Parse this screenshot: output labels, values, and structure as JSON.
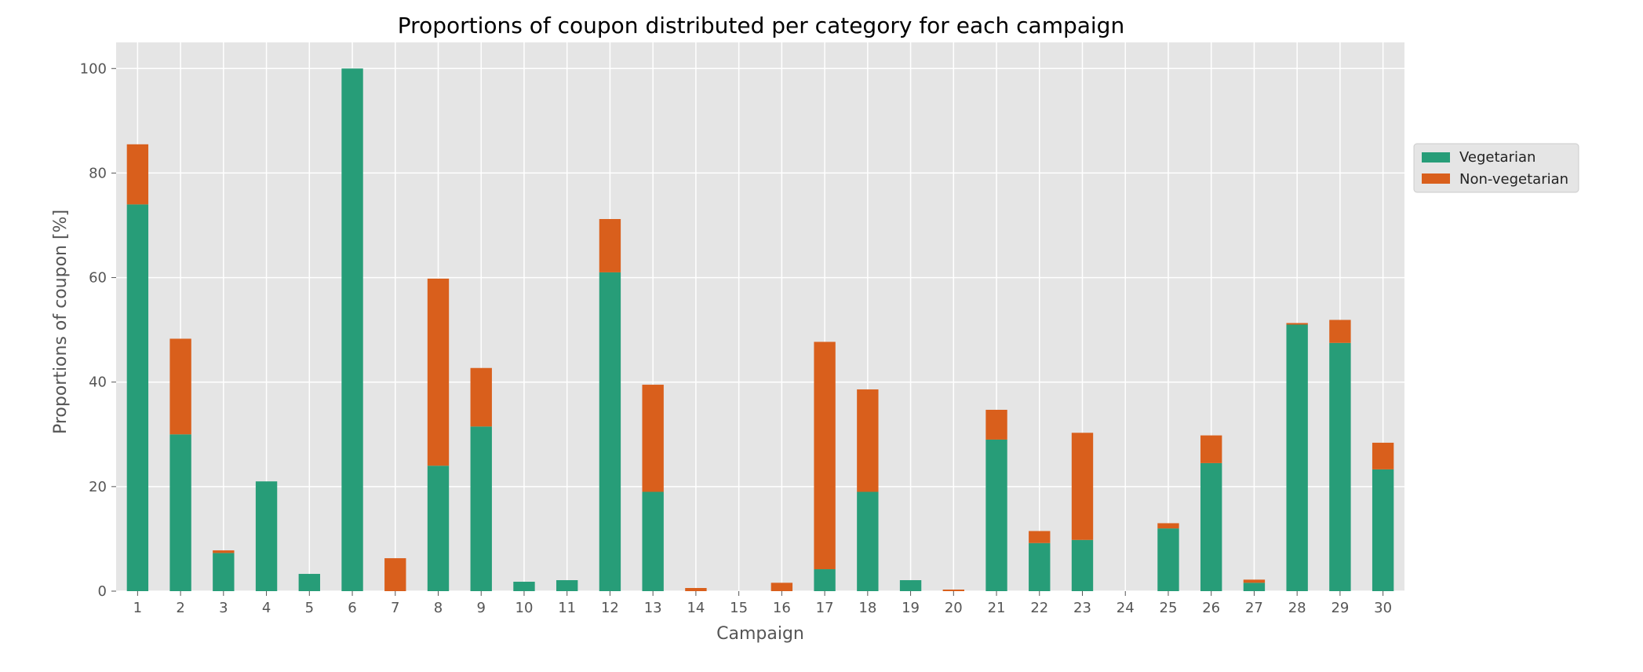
{
  "chart_data": {
    "type": "bar",
    "stacked": true,
    "title": "Proportions of coupon distributed per category for each campaign",
    "xlabel": "Campaign",
    "ylabel": "Proportions of coupon [%]",
    "ylim": [
      0,
      105
    ],
    "yticks": [
      0,
      20,
      40,
      60,
      80,
      100
    ],
    "grid": true,
    "legend_position": "right",
    "categories": [
      "1",
      "2",
      "3",
      "4",
      "5",
      "6",
      "7",
      "8",
      "9",
      "10",
      "11",
      "12",
      "13",
      "14",
      "15",
      "16",
      "17",
      "18",
      "19",
      "20",
      "21",
      "22",
      "23",
      "24",
      "25",
      "26",
      "27",
      "28",
      "29",
      "30"
    ],
    "series": [
      {
        "name": "Vegetarian",
        "color": "#279d78",
        "values": [
          74,
          30,
          7.3,
          21,
          3.3,
          100,
          0,
          24,
          31.5,
          1.8,
          2.1,
          61,
          19,
          0,
          0,
          0,
          4.2,
          19,
          2.1,
          0,
          29,
          9.2,
          9.8,
          0,
          12,
          24.5,
          1.6,
          51,
          47.5,
          23.3
        ]
      },
      {
        "name": "Non-vegetarian",
        "color": "#d95f1c",
        "values": [
          11.5,
          18.3,
          0.5,
          0,
          0,
          0,
          6.3,
          35.8,
          11.2,
          0,
          0,
          10.2,
          20.5,
          0.6,
          0,
          1.6,
          43.5,
          19.6,
          0,
          0.3,
          5.7,
          2.3,
          20.5,
          0,
          1,
          5.3,
          0.6,
          0.3,
          4.4,
          5.1
        ]
      }
    ]
  }
}
